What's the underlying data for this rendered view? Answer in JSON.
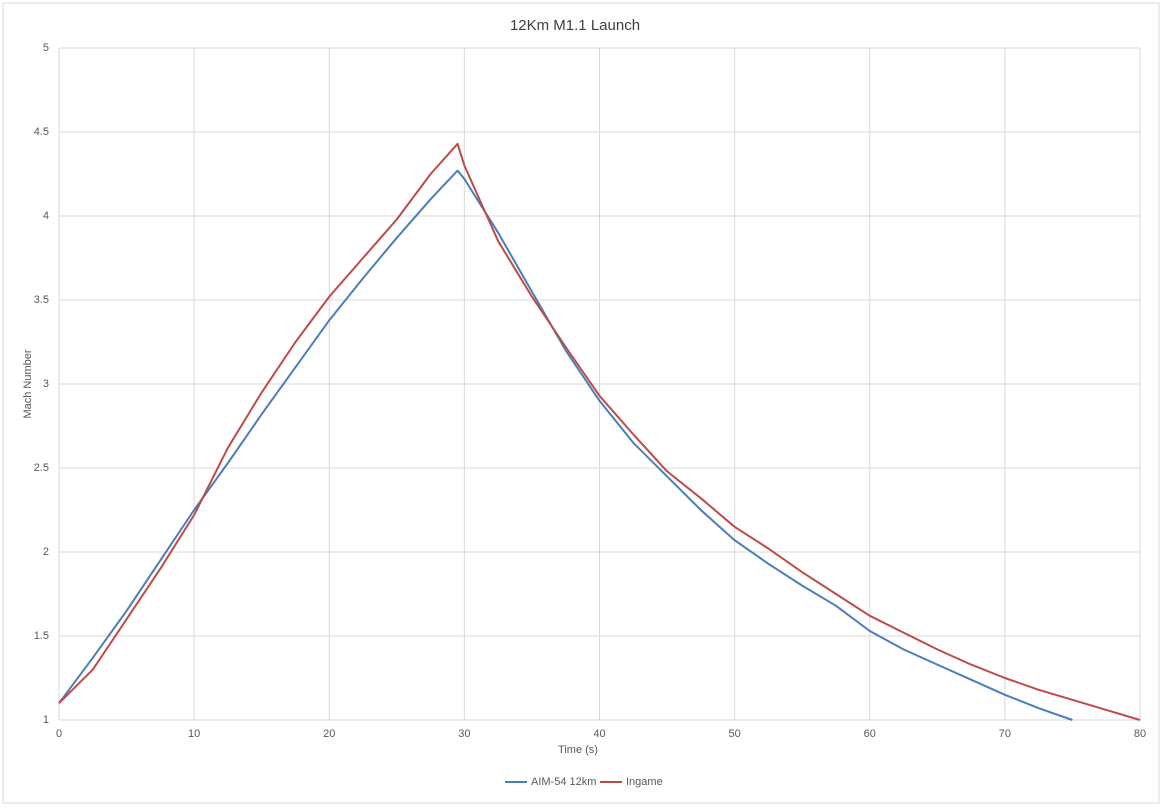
{
  "chart_data": {
    "type": "line",
    "title": "12Km M1.1 Launch",
    "x_label": "Time (s)",
    "y_label": "Mach Number",
    "x": [
      0,
      2.5,
      5,
      7.5,
      10,
      12.5,
      15,
      17.5,
      20,
      22.5,
      25,
      27.5,
      29.5,
      30,
      32.5,
      35,
      37.5,
      40,
      42.5,
      45,
      47.5,
      50,
      52.5,
      55,
      57.5,
      60,
      62.5,
      65,
      67.5,
      70,
      72.5,
      75,
      77.5,
      80
    ],
    "series": [
      {
        "name": "AIM-54 12km",
        "color": "#4a7ebb",
        "values": [
          1.1,
          1.37,
          1.65,
          1.95,
          2.25,
          2.53,
          2.82,
          3.1,
          3.38,
          3.63,
          3.87,
          4.1,
          4.27,
          4.22,
          3.9,
          3.55,
          3.2,
          2.9,
          2.65,
          2.45,
          2.25,
          2.07,
          1.93,
          1.8,
          1.68,
          1.53,
          1.42,
          1.33,
          1.24,
          1.15,
          1.07,
          1.0,
          null,
          null
        ]
      },
      {
        "name": "Ingame",
        "color": "#be4b48",
        "values": [
          1.1,
          1.3,
          1.6,
          1.9,
          2.22,
          2.62,
          2.95,
          3.25,
          3.52,
          3.75,
          3.98,
          4.25,
          4.43,
          4.3,
          3.85,
          3.52,
          3.22,
          2.93,
          2.7,
          2.48,
          2.32,
          2.15,
          2.02,
          1.88,
          1.75,
          1.62,
          1.52,
          1.42,
          1.33,
          1.25,
          1.18,
          1.12,
          1.06,
          1.0
        ]
      }
    ],
    "xlim": [
      0,
      80
    ],
    "xticks": [
      0,
      10,
      20,
      30,
      40,
      50,
      60,
      70,
      80
    ],
    "ylim": [
      1,
      5
    ],
    "yticks": [
      1,
      1.5,
      2,
      2.5,
      3,
      3.5,
      4,
      4.5,
      5
    ],
    "grid": true,
    "legend": "bottom"
  }
}
